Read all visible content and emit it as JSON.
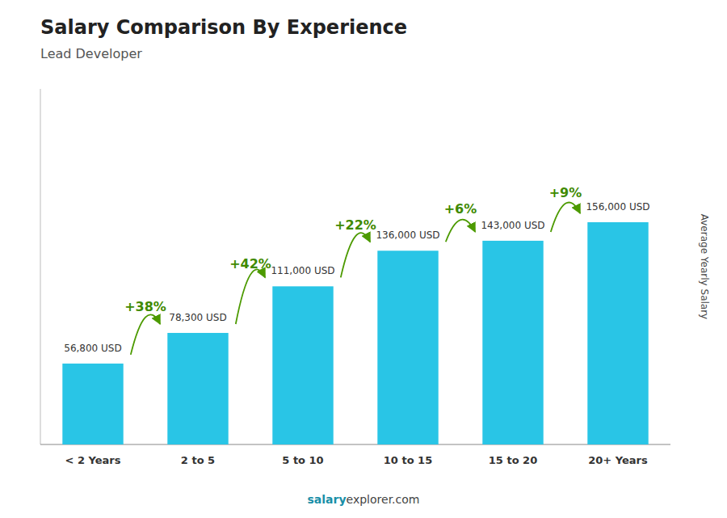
{
  "chart_data": {
    "type": "bar",
    "title": "Salary Comparison By Experience",
    "subtitle": "Lead Developer",
    "y_label": "Average Yearly Salary",
    "categories": [
      "< 2 Years",
      "2 to 5",
      "5 to 10",
      "10 to 15",
      "15 to 20",
      "20+ Years"
    ],
    "values": [
      56800,
      78300,
      111000,
      136000,
      143000,
      156000
    ],
    "value_labels": [
      "56,800 USD",
      "78,300 USD",
      "111,000 USD",
      "136,000 USD",
      "143,000 USD",
      "156,000 USD"
    ],
    "data_labels": true,
    "annotations": [
      "+38%",
      "+42%",
      "+22%",
      "+6%",
      "+9%"
    ],
    "footer": [
      "salary",
      "explorer.com"
    ],
    "color": "#29c5e6",
    "ylim": [
      0,
      249600
    ],
    "tick_labels": "x",
    "grid": false
  }
}
